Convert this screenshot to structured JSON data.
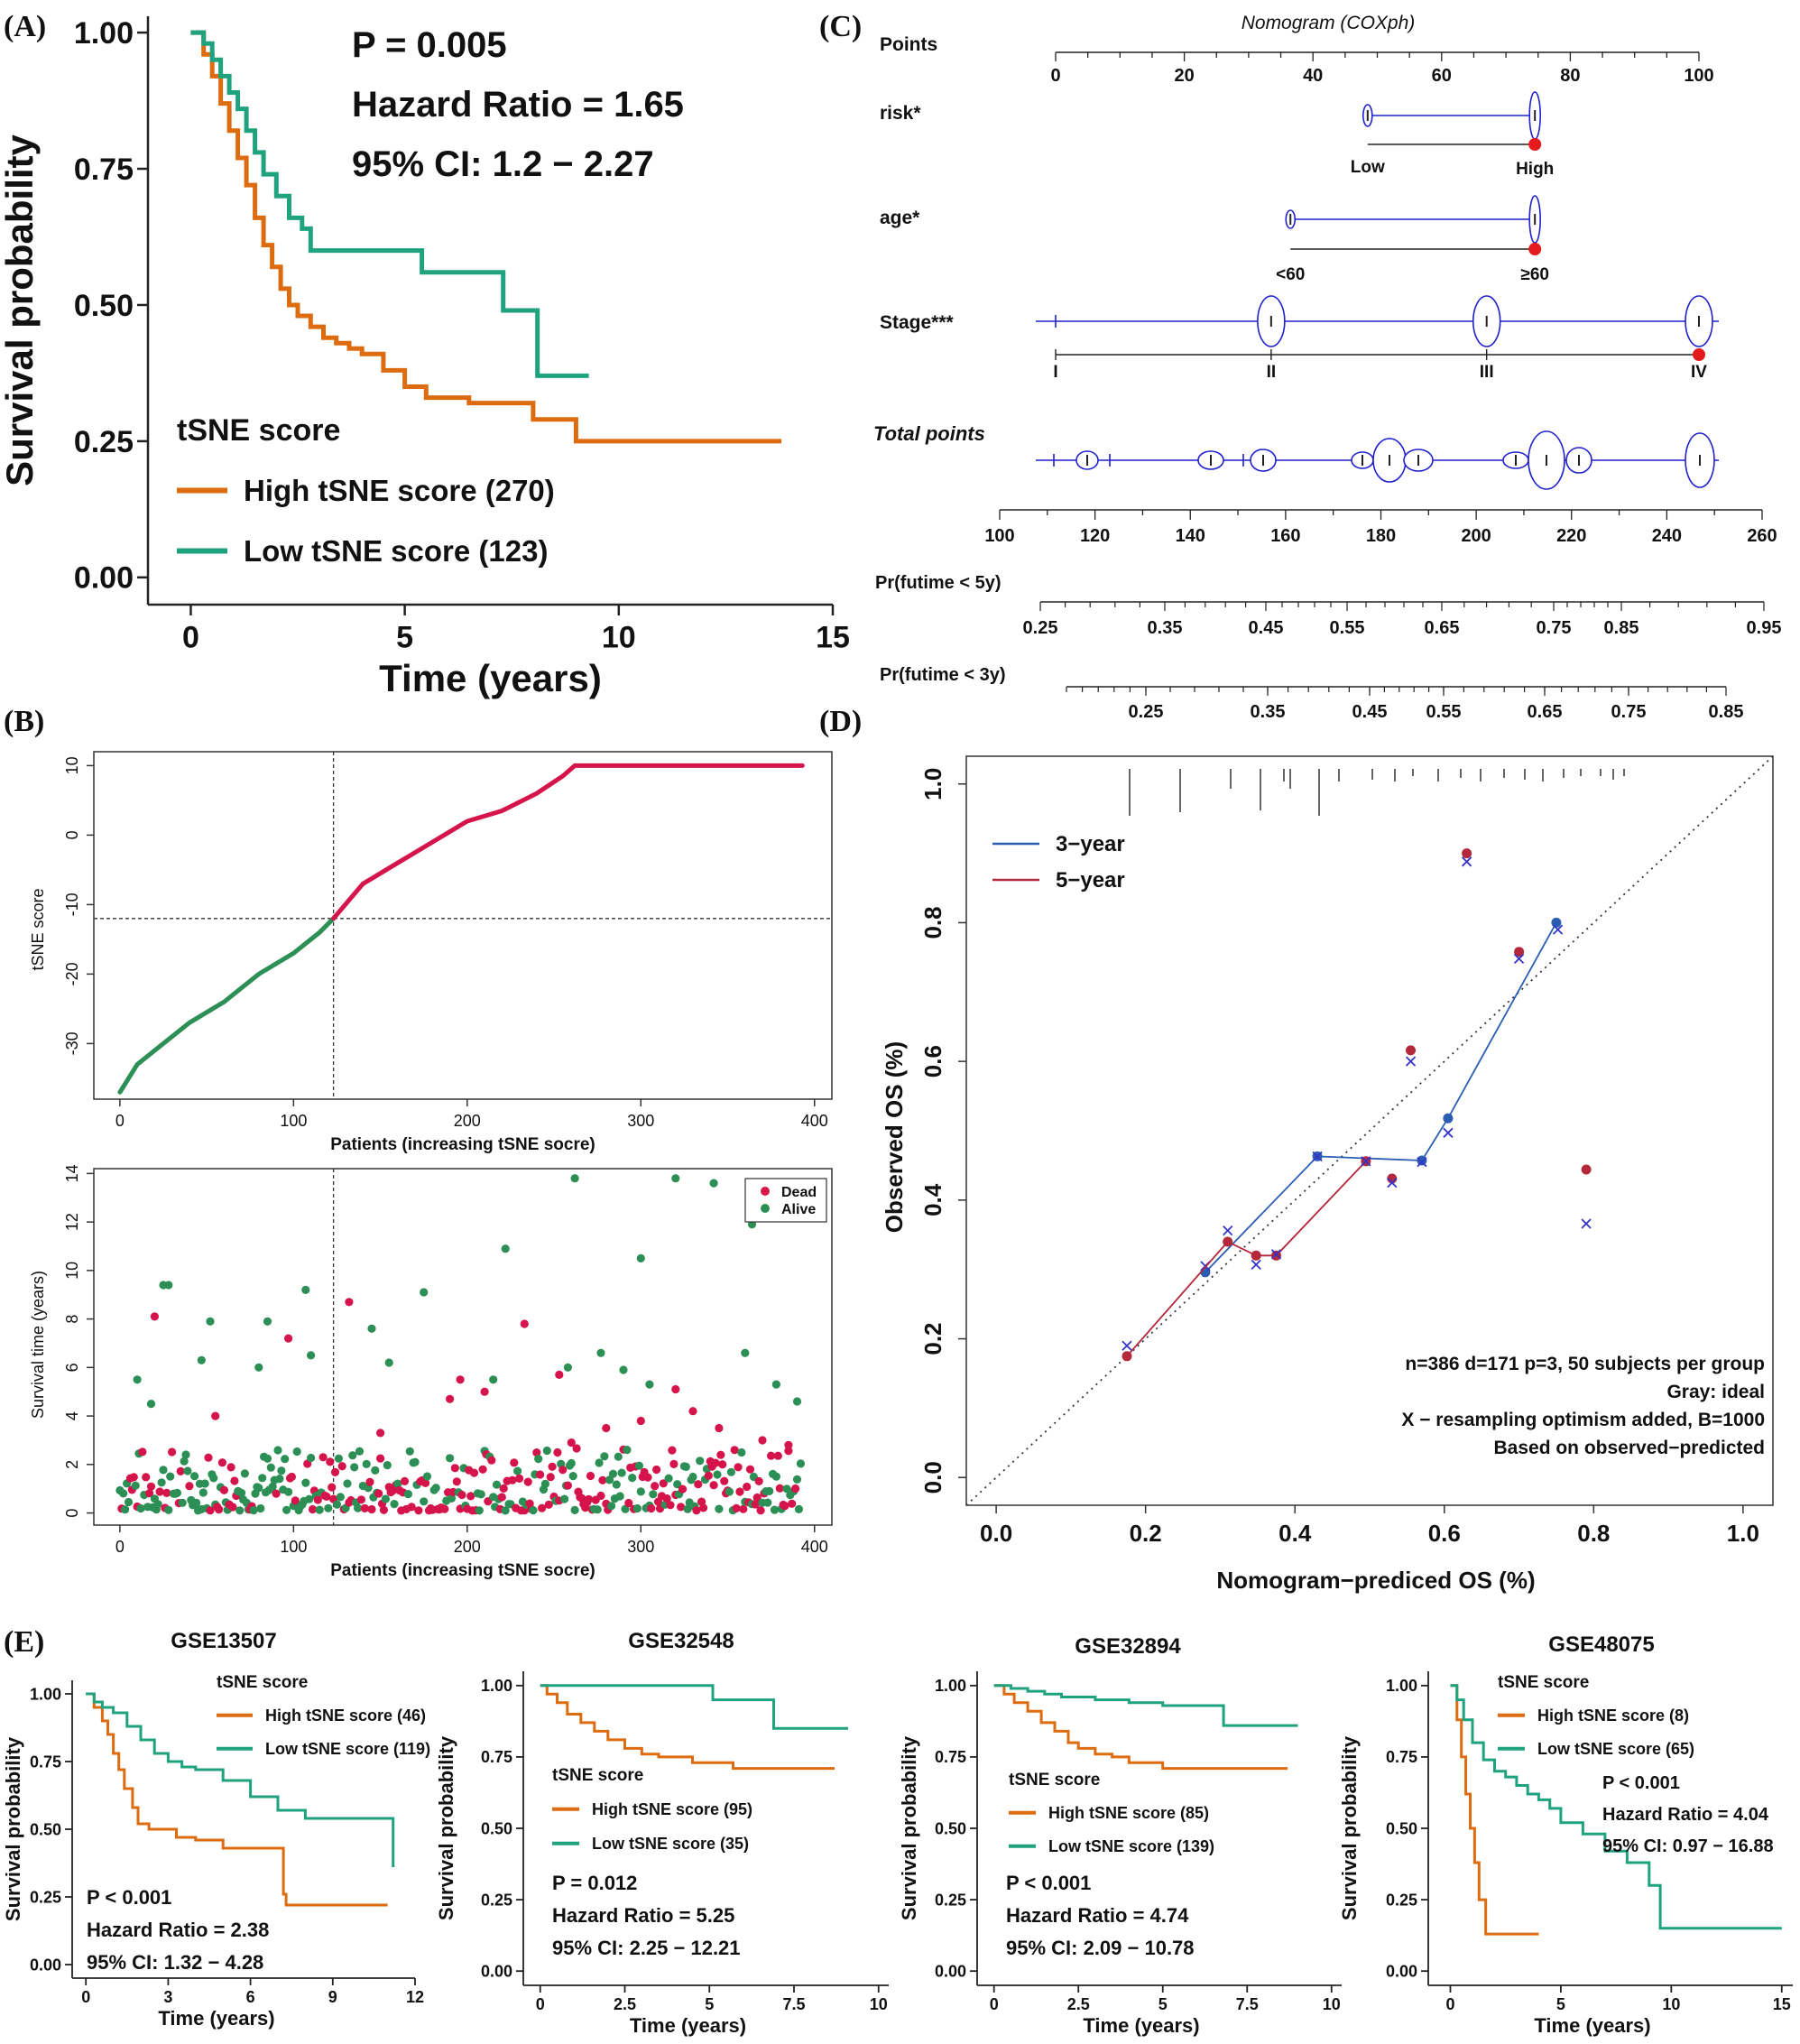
{
  "panel_labels": {
    "A": "(A)",
    "B": "(B)",
    "C": "(C)",
    "D": "(D)",
    "E": "(E)"
  },
  "colors": {
    "high": "#DD6B0F",
    "low": "#1FA27E",
    "red": "#D4144A",
    "green": "#2C8F55",
    "blue": "#2B5DB3",
    "dark_red": "#B3283A",
    "nomo": "#2020CC",
    "dot": "#E41A1C"
  },
  "chart_data": [
    {
      "id": "A",
      "type": "line",
      "xlabel": "Time (years)",
      "ylabel": "Survival probability",
      "xlim": [
        -1,
        15
      ],
      "ylim": [
        -0.05,
        1.03
      ],
      "xticks": [
        0,
        5,
        10,
        15
      ],
      "yticks": [
        "0.00",
        "0.25",
        "0.50",
        "0.75",
        "1.00"
      ],
      "legend_title": "tSNE score",
      "stats": [
        "P = 0.005",
        "Hazard Ratio = 1.65",
        "95% CI: 1.2 − 2.27"
      ],
      "series": [
        {
          "name": "High tSNE score (270)",
          "color": "#DD6B0F",
          "x": [
            0,
            0.3,
            0.5,
            0.7,
            0.9,
            1.1,
            1.3,
            1.5,
            1.7,
            1.9,
            2.1,
            2.3,
            2.5,
            2.8,
            3.1,
            3.4,
            3.7,
            4.0,
            4.5,
            5.0,
            5.5,
            6.5,
            7.5,
            8.0,
            8.6,
            9.0,
            13.8
          ],
          "y": [
            1.0,
            0.96,
            0.92,
            0.87,
            0.82,
            0.77,
            0.72,
            0.66,
            0.61,
            0.57,
            0.53,
            0.5,
            0.48,
            0.46,
            0.44,
            0.43,
            0.42,
            0.41,
            0.38,
            0.35,
            0.33,
            0.32,
            0.32,
            0.29,
            0.29,
            0.25,
            0.25
          ]
        },
        {
          "name": "Low tSNE score (123)",
          "color": "#1FA27E",
          "x": [
            0,
            0.3,
            0.5,
            0.7,
            0.9,
            1.1,
            1.3,
            1.5,
            1.7,
            2.0,
            2.3,
            2.6,
            2.8,
            3.5,
            4.5,
            5.4,
            6.5,
            7.2,
            7.3,
            8.0,
            8.1,
            9.3
          ],
          "y": [
            1.0,
            0.98,
            0.95,
            0.92,
            0.89,
            0.86,
            0.82,
            0.78,
            0.74,
            0.7,
            0.66,
            0.64,
            0.6,
            0.6,
            0.6,
            0.56,
            0.56,
            0.56,
            0.49,
            0.49,
            0.37,
            0.37
          ]
        }
      ]
    },
    {
      "id": "B1",
      "type": "line",
      "xlabel": "Patients (increasing tSNE socre)",
      "ylabel": "tSNE score",
      "xlim": [
        -15,
        410
      ],
      "ylim": [
        -38,
        12
      ],
      "xticks": [
        0,
        100,
        200,
        300,
        400
      ],
      "yticks": [
        -30,
        -20,
        -10,
        0,
        10
      ],
      "cutoff_x": 123,
      "cutoff_y": -12,
      "series": [
        {
          "name": "Low",
          "color": "#2C8F55",
          "x": [
            0,
            10,
            20,
            40,
            60,
            80,
            100,
            115,
            123
          ],
          "y": [
            -37,
            -33,
            -31,
            -27,
            -24,
            -20,
            -17,
            -14,
            -12
          ]
        },
        {
          "name": "High",
          "color": "#D4144A",
          "x": [
            123,
            140,
            160,
            180,
            200,
            220,
            240,
            255,
            262,
            393
          ],
          "y": [
            -12,
            -7,
            -4,
            -1,
            2,
            3.5,
            6,
            8.5,
            10,
            10
          ]
        }
      ]
    },
    {
      "id": "B2",
      "type": "scatter",
      "xlabel": "Patients (increasing tSNE socre)",
      "ylabel": "Survival time (years)",
      "xlim": [
        -15,
        410
      ],
      "ylim": [
        -0.5,
        14.2
      ],
      "xticks": [
        0,
        100,
        200,
        300,
        400
      ],
      "yticks": [
        0,
        2,
        4,
        6,
        8,
        10,
        12,
        14
      ],
      "cutoff_x": 123,
      "legend": [
        "Dead",
        "Alive"
      ],
      "series": [
        {
          "name": "Dead",
          "color": "#D4144A",
          "x": [
            20,
            97,
            132,
            233,
            196,
            253,
            210,
            320,
            55,
            190,
            280,
            330,
            370,
            385,
            150,
            260,
            300,
            345
          ],
          "y": [
            8.1,
            7.2,
            8.7,
            7.8,
            5.5,
            5.7,
            5.0,
            5.1,
            4.0,
            4.7,
            3.5,
            4.2,
            3.0,
            2.8,
            3.3,
            2.9,
            3.8,
            3.5
          ]
        },
        {
          "name": "Alive",
          "color": "#2C8F55",
          "x": [
            25,
            28,
            52,
            85,
            107,
            262,
            300,
            320,
            342,
            364,
            222,
            175,
            10,
            18,
            47,
            80,
            110,
            145,
            155,
            215,
            258,
            277,
            290,
            305,
            360,
            378,
            390
          ],
          "y": [
            9.4,
            9.4,
            7.9,
            7.9,
            9.2,
            13.8,
            10.5,
            13.8,
            13.6,
            11.9,
            10.9,
            9.1,
            5.5,
            4.5,
            6.3,
            6.0,
            6.5,
            7.6,
            6.2,
            5.5,
            6.0,
            6.6,
            5.9,
            5.3,
            6.6,
            5.3,
            4.6
          ]
        }
      ]
    },
    {
      "id": "C",
      "type": "table",
      "title": "Nomogram (COXph)",
      "rows": [
        "Points",
        "risk*",
        "age*",
        "Stage***",
        "Total points",
        "Pr(futime < 5y)",
        "Pr(futime < 3y)"
      ],
      "points_ticks": [
        0,
        20,
        40,
        60,
        80,
        100
      ],
      "risk_levels": [
        "Low",
        "High"
      ],
      "risk_points": [
        48.5,
        74.5
      ],
      "age_levels": [
        "<60",
        "≥60"
      ],
      "age_points": [
        36.5,
        74.5
      ],
      "stage_levels": [
        "I",
        "II",
        "III",
        "IV"
      ],
      "stage_points": [
        0,
        33.5,
        67,
        100
      ],
      "total_ticks": [
        100,
        120,
        140,
        160,
        180,
        200,
        220,
        240,
        260
      ],
      "pr5_ticks": [
        "0.25",
        "0.35",
        "0.45",
        "0.55",
        "0.65",
        "0.75",
        "0.85",
        "0.95"
      ],
      "pr3_ticks": [
        "0.25",
        "0.35",
        "0.45",
        "0.55",
        "0.65",
        "0.75",
        "0.85"
      ]
    },
    {
      "id": "D",
      "type": "scatter",
      "xlabel": "Nomogram−prediced OS (%)",
      "ylabel": "Observed OS (%)",
      "xlim": [
        -0.04,
        1.04
      ],
      "ylim": [
        -0.04,
        1.04
      ],
      "xticks": [
        "0.0",
        "0.2",
        "0.4",
        "0.6",
        "0.8",
        "1.0"
      ],
      "yticks": [
        "0.0",
        "0.2",
        "0.4",
        "0.6",
        "0.8",
        "1.0"
      ],
      "legend": [
        "3−year",
        "5−year"
      ],
      "notes": [
        "n=386 d=171 p=3, 50 subjects per group",
        "Gray: ideal",
        "X − resampling optimism added, B=1000",
        "Based on observed−predicted"
      ],
      "series": [
        {
          "name": "3−year",
          "color": "#2B5DB3",
          "x": [
            0.28,
            0.43,
            0.57,
            0.605,
            0.75
          ],
          "y": [
            0.296,
            0.463,
            0.457,
            0.518,
            0.8
          ],
          "x_x": [
            0.28,
            0.43,
            0.57,
            0.605,
            0.752
          ],
          "x_y": [
            0.305,
            0.463,
            0.455,
            0.497,
            0.79
          ]
        },
        {
          "name": "5−year",
          "color": "#B3283A",
          "x": [
            0.175,
            0.31,
            0.348,
            0.375,
            0.495,
            0.53,
            0.555,
            0.63,
            0.7,
            0.79
          ],
          "y": [
            0.175,
            0.34,
            0.32,
            0.32,
            0.456,
            0.431,
            0.616,
            0.9,
            0.758,
            0.444
          ],
          "x_x": [
            0.175,
            0.31,
            0.348,
            0.375,
            0.495,
            0.53,
            0.555,
            0.63,
            0.7,
            0.79
          ],
          "x_y": [
            0.19,
            0.356,
            0.307,
            0.322,
            0.456,
            0.425,
            0.6,
            0.888,
            0.748,
            0.366
          ]
        }
      ]
    },
    {
      "id": "E1",
      "type": "line",
      "title": "GSE13507",
      "xlabel": "Time (years)",
      "ylabel": "Survival probability",
      "xlim": [
        -0.5,
        12
      ],
      "ylim": [
        -0.05,
        1.05
      ],
      "xticks": [
        0,
        3,
        6,
        9,
        12
      ],
      "yticks": [
        "0.00",
        "0.25",
        "0.50",
        "0.75",
        "1.00"
      ],
      "legend_title": "tSNE score",
      "stats": [
        "P < 0.001",
        "Hazard Ratio = 2.38",
        "95% CI: 1.32 − 4.28"
      ],
      "series": [
        {
          "name": "High tSNE score (46)",
          "color": "#DD6B0F",
          "x": [
            0,
            0.3,
            0.6,
            0.8,
            1.0,
            1.2,
            1.4,
            1.7,
            1.9,
            2.3,
            2.9,
            3.3,
            4.0,
            5.0,
            7.0,
            7.2,
            7.3,
            11.0
          ],
          "y": [
            1.0,
            0.95,
            0.9,
            0.85,
            0.78,
            0.72,
            0.65,
            0.58,
            0.52,
            0.5,
            0.5,
            0.47,
            0.46,
            0.43,
            0.43,
            0.26,
            0.22,
            0.22
          ]
        },
        {
          "name": "Low tSNE score (119)",
          "color": "#1FA27E",
          "x": [
            0,
            0.3,
            0.6,
            1.0,
            1.5,
            2.0,
            2.5,
            3.0,
            3.5,
            4.0,
            5.0,
            6.0,
            7.0,
            8.0,
            11.0,
            11.2
          ],
          "y": [
            1.0,
            0.97,
            0.95,
            0.93,
            0.88,
            0.83,
            0.78,
            0.75,
            0.73,
            0.72,
            0.68,
            0.62,
            0.57,
            0.54,
            0.54,
            0.36
          ]
        }
      ]
    },
    {
      "id": "E2",
      "type": "line",
      "title": "GSE32548",
      "xlabel": "Time (years)",
      "ylabel": "Survival probability",
      "xlim": [
        -0.5,
        10.3
      ],
      "ylim": [
        -0.05,
        1.05
      ],
      "xticks": [
        "0",
        "2.5",
        "5",
        "7.5",
        "10"
      ],
      "yticks": [
        "0.00",
        "0.25",
        "0.50",
        "0.75",
        "1.00"
      ],
      "legend_title": "tSNE score",
      "stats": [
        "P = 0.012",
        "Hazard Ratio = 5.25",
        "95% CI: 2.25 − 12.21"
      ],
      "series": [
        {
          "name": "High tSNE score (95)",
          "color": "#DD6B0F",
          "x": [
            0,
            0.2,
            0.5,
            0.8,
            1.2,
            1.6,
            2.0,
            2.5,
            3.0,
            3.5,
            4.5,
            5.7,
            8.7
          ],
          "y": [
            1.0,
            0.97,
            0.94,
            0.9,
            0.87,
            0.84,
            0.81,
            0.78,
            0.76,
            0.75,
            0.73,
            0.71,
            0.71
          ]
        },
        {
          "name": "Low tSNE score (35)",
          "color": "#1FA27E",
          "x": [
            0,
            5.0,
            5.1,
            6.8,
            6.9,
            9.1
          ],
          "y": [
            1.0,
            1.0,
            0.95,
            0.95,
            0.85,
            0.85
          ]
        }
      ]
    },
    {
      "id": "E3",
      "type": "line",
      "title": "GSE32894",
      "xlabel": "Time (years)",
      "ylabel": "Survival probability",
      "xlim": [
        -0.5,
        10.3
      ],
      "ylim": [
        -0.05,
        1.05
      ],
      "xticks": [
        "0",
        "2.5",
        "5",
        "7.5",
        "10"
      ],
      "yticks": [
        "0.00",
        "0.25",
        "0.50",
        "0.75",
        "1.00"
      ],
      "legend_title": "tSNE score",
      "stats": [
        "P < 0.001",
        "Hazard Ratio = 4.74",
        "95% CI: 2.09 − 10.78"
      ],
      "series": [
        {
          "name": "High tSNE score (85)",
          "color": "#DD6B0F",
          "x": [
            0,
            0.3,
            0.6,
            1.0,
            1.4,
            1.8,
            2.2,
            2.5,
            3.0,
            3.5,
            4.0,
            5.0,
            8.7
          ],
          "y": [
            1.0,
            0.97,
            0.94,
            0.91,
            0.87,
            0.84,
            0.8,
            0.78,
            0.76,
            0.75,
            0.73,
            0.71,
            0.71
          ]
        },
        {
          "name": "Low tSNE score (139)",
          "color": "#1FA27E",
          "x": [
            0,
            0.5,
            1.0,
            1.5,
            2.0,
            3.0,
            4.0,
            5.0,
            6.5,
            6.8,
            9.0
          ],
          "y": [
            1.0,
            0.99,
            0.98,
            0.97,
            0.96,
            0.95,
            0.94,
            0.93,
            0.93,
            0.86,
            0.86
          ]
        }
      ]
    },
    {
      "id": "E4",
      "type": "line",
      "title": "GSE48075",
      "xlabel": "Time (years)",
      "ylabel": "Survival probability",
      "xlim": [
        -1,
        15.5
      ],
      "ylim": [
        -0.05,
        1.05
      ],
      "xticks": [
        0,
        5,
        10,
        15
      ],
      "yticks": [
        "0.00",
        "0.25",
        "0.50",
        "0.75",
        "1.00"
      ],
      "legend_title": "tSNE score",
      "stats": [
        "P < 0.001",
        "Hazard Ratio = 4.04",
        "95% CI: 0.97 − 16.88"
      ],
      "series": [
        {
          "name": "High tSNE score (8)",
          "color": "#DD6B0F",
          "x": [
            0,
            0.3,
            0.5,
            0.7,
            0.9,
            1.1,
            1.3,
            1.6,
            4.0
          ],
          "y": [
            1.0,
            0.88,
            0.75,
            0.62,
            0.5,
            0.38,
            0.25,
            0.13,
            0.13
          ]
        },
        {
          "name": "Low tSNE score (65)",
          "color": "#1FA27E",
          "x": [
            0,
            0.3,
            0.6,
            1.0,
            1.5,
            2.0,
            2.5,
            3.0,
            3.5,
            4.0,
            4.5,
            5.0,
            6.0,
            7.0,
            8.0,
            9.0,
            9.5,
            15.0
          ],
          "y": [
            1.0,
            0.95,
            0.88,
            0.8,
            0.74,
            0.7,
            0.68,
            0.65,
            0.62,
            0.6,
            0.57,
            0.52,
            0.48,
            0.42,
            0.38,
            0.3,
            0.15,
            0.15
          ]
        }
      ]
    }
  ]
}
